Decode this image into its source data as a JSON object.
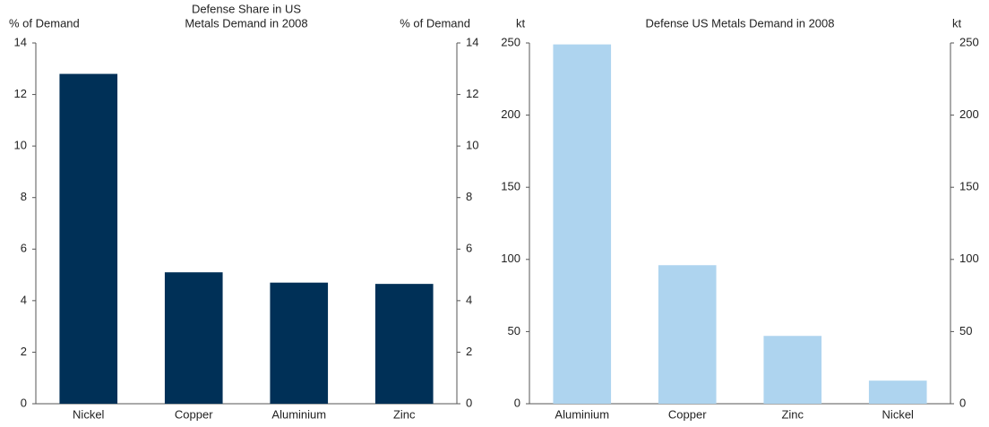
{
  "chart_data": [
    {
      "type": "bar",
      "title": [
        "Defense Share in US",
        "Metals Demand in 2008"
      ],
      "ylabel": "% of Demand",
      "y2label": "% of Demand",
      "categories": [
        "Nickel",
        "Copper",
        "Aluminium",
        "Zinc"
      ],
      "values": [
        12.8,
        5.1,
        4.7,
        4.65
      ],
      "color": "#003057",
      "ylim": [
        0,
        14
      ],
      "yticks": [
        0,
        2,
        4,
        6,
        8,
        10,
        12,
        14
      ],
      "y2lim": [
        0,
        14
      ],
      "y2ticks": [
        0,
        2,
        4,
        6,
        8,
        10,
        12,
        14
      ]
    },
    {
      "type": "bar",
      "title": [
        "Defense US Metals Demand in 2008"
      ],
      "ylabel": "kt",
      "y2label": "kt",
      "categories": [
        "Aluminium",
        "Copper",
        "Zinc",
        "Nickel"
      ],
      "values": [
        249,
        96,
        47,
        16
      ],
      "color": "#aed4ef",
      "ylim": [
        0,
        250
      ],
      "yticks": [
        0,
        50,
        100,
        150,
        200,
        250
      ],
      "y2lim": [
        0,
        250
      ],
      "y2ticks": [
        0,
        50,
        100,
        150,
        200,
        250
      ]
    }
  ]
}
